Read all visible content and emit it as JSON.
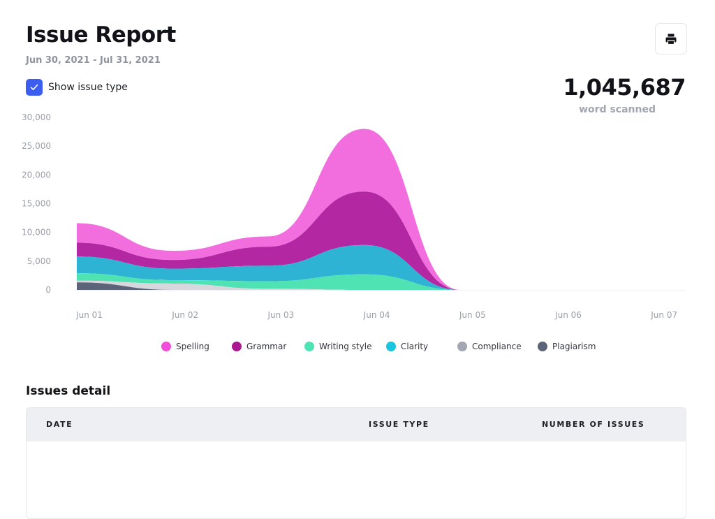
{
  "header": {
    "title": "Issue Report",
    "date_range": "Jun 30, 2021 - Jul 31, 2021",
    "print_icon": "printer-icon"
  },
  "options": {
    "show_issue_type_label": "Show issue type",
    "show_issue_type_checked": true
  },
  "summary": {
    "total": "1,045,687",
    "total_label": "word scanned"
  },
  "chart_data": {
    "type": "area",
    "stacked": true,
    "categories": [
      "Jun 01",
      "Jun 02",
      "Jun 03",
      "Jun 04",
      "Jun 05",
      "Jun 06",
      "Jun 07"
    ],
    "y_ticks": [
      "30,000",
      "25,000",
      "20,000",
      "15,000",
      "10,000",
      "5,000",
      "0"
    ],
    "ylim": [
      0,
      30000
    ],
    "series": [
      {
        "name": "Plagiarism",
        "color": "#5b6478",
        "values": [
          1300,
          0,
          0,
          0,
          0,
          null,
          null
        ]
      },
      {
        "name": "Compliance",
        "color": "#d6d8de",
        "values": [
          300,
          1100,
          200,
          0,
          0,
          null,
          null
        ]
      },
      {
        "name": "Writing style",
        "color": "#4fe3b4",
        "values": [
          1300,
          600,
          1300,
          2700,
          0,
          null,
          null
        ]
      },
      {
        "name": "Clarity",
        "color": "#2fb3d4",
        "values": [
          2900,
          2000,
          2700,
          5100,
          0,
          null,
          null
        ]
      },
      {
        "name": "Grammar",
        "color": "#b427a3",
        "values": [
          2400,
          1500,
          3300,
          9300,
          0,
          null,
          null
        ]
      },
      {
        "name": "Spelling",
        "color": "#f26ede",
        "values": [
          3400,
          1600,
          1800,
          10900,
          0,
          null,
          null
        ]
      }
    ],
    "legend": [
      {
        "name": "Spelling",
        "color": "#f04fd9"
      },
      {
        "name": "Grammar",
        "color": "#a8198f"
      },
      {
        "name": "Writing style",
        "color": "#4fe3b4"
      },
      {
        "name": "Clarity",
        "color": "#19c6e0"
      },
      {
        "name": "Compliance",
        "color": "#a3a7b2"
      },
      {
        "name": "Plagiarism",
        "color": "#5b6478"
      }
    ],
    "legend_position": "bottom",
    "grid": false
  },
  "details": {
    "title": "Issues detail",
    "columns": [
      "DATE",
      "ISSUE TYPE",
      "NUMBER OF ISSUES"
    ],
    "rows": []
  }
}
